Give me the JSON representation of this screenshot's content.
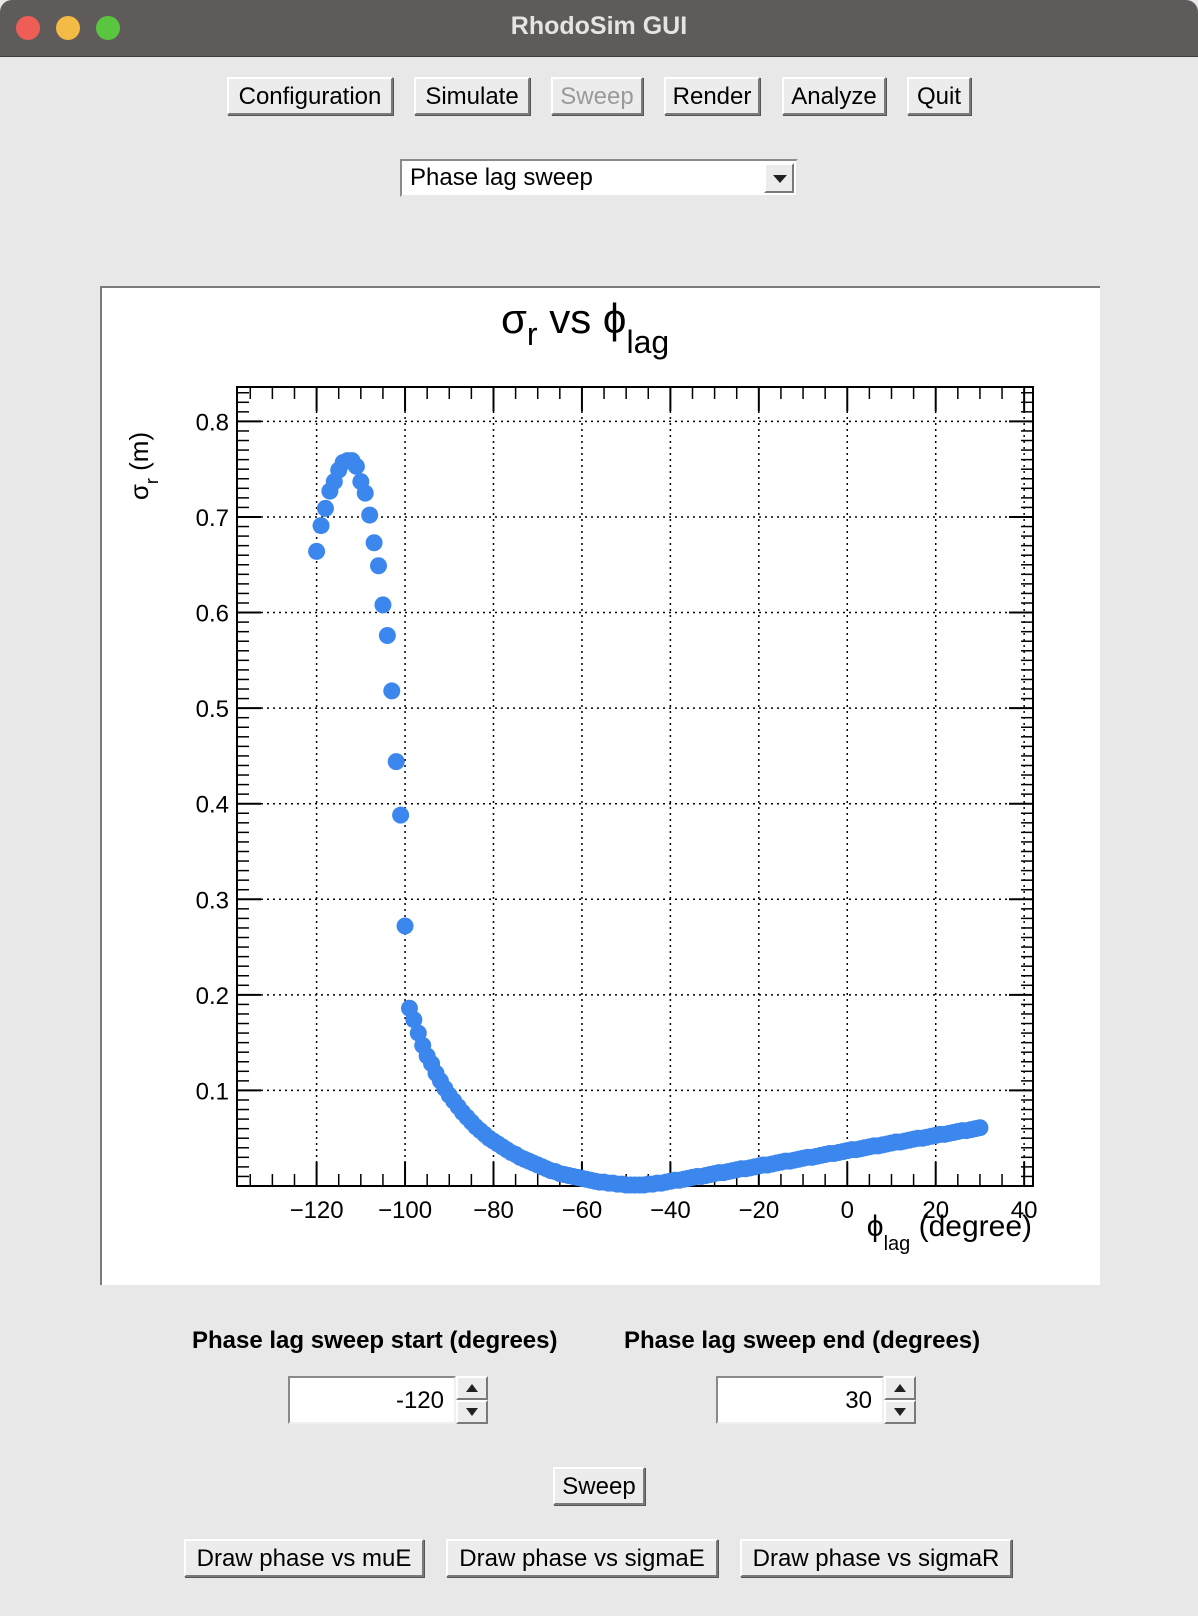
{
  "window": {
    "title": "RhodoSim GUI"
  },
  "toolbar": {
    "configuration": "Configuration",
    "simulate": "Simulate",
    "sweep": "Sweep",
    "render": "Render",
    "analyze": "Analyze",
    "quit": "Quit"
  },
  "sweep_mode": {
    "selected": "Phase lag sweep"
  },
  "controls": {
    "start_label": "Phase lag sweep start (degrees)",
    "end_label": "Phase lag sweep end (degrees)",
    "start_value": "-120",
    "end_value": "30",
    "sweep_button": "Sweep",
    "draw_mue": "Draw phase vs muE",
    "draw_sigmae": "Draw phase vs sigmaE",
    "draw_sigmar": "Draw phase vs sigmaR"
  },
  "colors": {
    "marker": "#3c87ee",
    "grid": "#000000"
  },
  "chart_data": {
    "type": "scatter",
    "title_main": "σ",
    "title_sub": "r",
    "title_vs": " vs ",
    "title_phi": "ϕ",
    "title_phi_sub": "lag",
    "xlabel_main": "ϕ",
    "xlabel_sub": "lag",
    "xlabel_unit": " (degree)",
    "ylabel_main": "σ",
    "ylabel_sub": "r",
    "ylabel_unit": " (m)",
    "xlim": [
      -138,
      42
    ],
    "ylim": [
      0.0,
      0.836
    ],
    "xticks": [
      -120,
      -100,
      -80,
      -60,
      -40,
      -20,
      0,
      20,
      40
    ],
    "xtick_labels": [
      "−120",
      "−100",
      "−80",
      "−60",
      "−40",
      "−20",
      "0",
      "20",
      "40"
    ],
    "yticks": [
      0.1,
      0.2,
      0.3,
      0.4,
      0.5,
      0.6,
      0.7,
      0.8
    ],
    "ytick_labels": [
      "0.1",
      "0.2",
      "0.3",
      "0.4",
      "0.5",
      "0.6",
      "0.7",
      "0.8"
    ],
    "grid": true,
    "x": [
      -120,
      -119,
      -118,
      -117,
      -116,
      -115,
      -114,
      -113,
      -112,
      -111,
      -110,
      -109,
      -108,
      -107,
      -106,
      -105,
      -104,
      -103,
      -102,
      -101,
      -100,
      -99,
      -98,
      -97,
      -96,
      -95,
      -94,
      -93,
      -92,
      -91,
      -90,
      -89,
      -88,
      -87,
      -86,
      -85,
      -84,
      -83,
      -82,
      -81,
      -80,
      -79,
      -78,
      -77,
      -76,
      -75,
      -74,
      -73,
      -72,
      -71,
      -70,
      -69,
      -68,
      -67,
      -66,
      -65,
      -64,
      -63,
      -62,
      -61,
      -60,
      -59,
      -58,
      -57,
      -56,
      -55,
      -54,
      -53,
      -52,
      -51,
      -50,
      -49,
      -48,
      -47,
      -46,
      -45,
      -44,
      -43,
      -42,
      -41,
      -40,
      -39,
      -38,
      -37,
      -36,
      -35,
      -34,
      -33,
      -32,
      -31,
      -30,
      -29,
      -28,
      -27,
      -26,
      -25,
      -24,
      -23,
      -22,
      -21,
      -20,
      -19,
      -18,
      -17,
      -16,
      -15,
      -14,
      -13,
      -12,
      -11,
      -10,
      -9,
      -8,
      -7,
      -6,
      -5,
      -4,
      -3,
      -2,
      -1,
      0,
      1,
      2,
      3,
      4,
      5,
      6,
      7,
      8,
      9,
      10,
      11,
      12,
      13,
      14,
      15,
      16,
      17,
      18,
      19,
      20,
      21,
      22,
      23,
      24,
      25,
      26,
      27,
      28,
      29,
      30
    ],
    "y": [
      0.664,
      0.691,
      0.709,
      0.727,
      0.737,
      0.749,
      0.757,
      0.759,
      0.759,
      0.753,
      0.737,
      0.725,
      0.702,
      0.673,
      0.649,
      0.608,
      0.576,
      0.518,
      0.444,
      0.388,
      0.272,
      0.186,
      0.174,
      0.16,
      0.147,
      0.136,
      0.128,
      0.118,
      0.11,
      0.102,
      0.095,
      0.089,
      0.083,
      0.077,
      0.072,
      0.067,
      0.062,
      0.058,
      0.054,
      0.05,
      0.047,
      0.044,
      0.041,
      0.038,
      0.035,
      0.033,
      0.03,
      0.028,
      0.026,
      0.024,
      0.022,
      0.02,
      0.018,
      0.016,
      0.015,
      0.013,
      0.012,
      0.011,
      0.01,
      0.009,
      0.008,
      0.007,
      0.006,
      0.005,
      0.004,
      0.004,
      0.003,
      0.003,
      0.002,
      0.002,
      0.001,
      0.001,
      0.001,
      0.001,
      0.001,
      0.002,
      0.002,
      0.003,
      0.003,
      0.004,
      0.005,
      0.006,
      0.006,
      0.007,
      0.008,
      0.009,
      0.01,
      0.01,
      0.011,
      0.012,
      0.013,
      0.014,
      0.014,
      0.015,
      0.016,
      0.017,
      0.018,
      0.018,
      0.019,
      0.02,
      0.021,
      0.022,
      0.022,
      0.023,
      0.024,
      0.025,
      0.026,
      0.026,
      0.027,
      0.028,
      0.029,
      0.03,
      0.03,
      0.031,
      0.032,
      0.033,
      0.034,
      0.034,
      0.035,
      0.036,
      0.037,
      0.038,
      0.038,
      0.039,
      0.04,
      0.041,
      0.042,
      0.042,
      0.043,
      0.044,
      0.045,
      0.046,
      0.046,
      0.047,
      0.048,
      0.049,
      0.05,
      0.05,
      0.051,
      0.052,
      0.053,
      0.054,
      0.054,
      0.055,
      0.056,
      0.057,
      0.058,
      0.058,
      0.059,
      0.06,
      0.061
    ]
  }
}
